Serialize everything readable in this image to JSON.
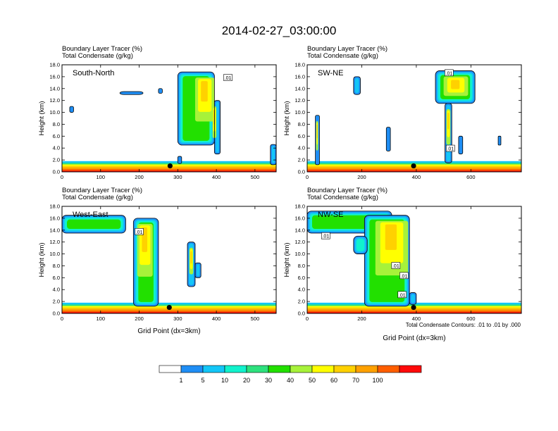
{
  "title": "2014-02-27_03:00:00",
  "colors": {
    "levels": [
      "#ffffff",
      "#1f8ef5",
      "#13c6f7",
      "#11f2cc",
      "#2ee17e",
      "#22e000",
      "#a7f23a",
      "#ffff00",
      "#ffd100",
      "#ffa100",
      "#ff5e00",
      "#ff0a0a"
    ],
    "contour": "#000000",
    "frame": "#000000"
  },
  "colorbar": {
    "labels": [
      "1",
      "5",
      "10",
      "20",
      "30",
      "40",
      "50",
      "60",
      "70",
      "100"
    ]
  },
  "footnote": "Total Condensate Contours: .01 to .01 by .000",
  "chart_data": [
    {
      "type": "heatmap",
      "panel_label": "South-North",
      "left_title_1": "Boundary Layer Tracer   (%)",
      "left_title_2": "Total Condensate   (g/kg)",
      "ylabel": "Height (km)",
      "xlabel": "",
      "xlim": [
        0,
        555
      ],
      "ylim": [
        0,
        18
      ],
      "xticks": [
        "0",
        "100",
        "200",
        "300",
        "400",
        "500"
      ],
      "xtick_values": [
        0,
        100,
        200,
        300,
        400,
        500
      ],
      "yticks": [
        "0.0",
        "2.0",
        "4.0",
        "6.0",
        "8.0",
        "10.0",
        "12.0",
        "14.0",
        "16.0",
        "18.0"
      ],
      "contour_labels": [
        {
          "text": ".01",
          "x": 430,
          "y": 15.8
        }
      ],
      "marker": {
        "x": 280,
        "y": 1.0
      },
      "features": [
        {
          "x": [
            300,
            395
          ],
          "top": 16.8,
          "bottom": 4.5,
          "dense": [
            345,
            395
          ]
        },
        {
          "x": [
            395,
            410
          ],
          "top": 12.0,
          "bottom": 3.0,
          "dense": [
            390,
            400
          ]
        },
        {
          "x": [
            150,
            210
          ],
          "top": 13.5,
          "bottom": 13.0,
          "dense": [
            0,
            0
          ]
        },
        {
          "x": [
            20,
            30
          ],
          "top": 11.0,
          "bottom": 10.0,
          "dense": [
            0,
            0
          ]
        },
        {
          "x": [
            250,
            260
          ],
          "top": 14.0,
          "bottom": 13.2,
          "dense": [
            0,
            0
          ]
        },
        {
          "x": [
            300,
            310
          ],
          "top": 2.6,
          "bottom": 1.4,
          "dense": [
            0,
            0
          ]
        },
        {
          "x": [
            540,
            555
          ],
          "top": 4.6,
          "bottom": 1.2,
          "dense": [
            0,
            0
          ]
        }
      ]
    },
    {
      "type": "heatmap",
      "panel_label": "SW-NE",
      "left_title_1": "Boundary Layer Tracer   (%)",
      "left_title_2": "Total Condensate   (g/kg)",
      "ylabel": "Height (km)",
      "xlabel": "",
      "xlim": [
        0,
        785
      ],
      "ylim": [
        0,
        18
      ],
      "xticks": [
        "0",
        "200",
        "400",
        "600"
      ],
      "xtick_values": [
        0,
        200,
        400,
        600
      ],
      "yticks": [
        "0.0",
        "2.0",
        "4.0",
        "6.0",
        "8.0",
        "10.0",
        "12.0",
        "14.0",
        "16.0",
        "18.0"
      ],
      "contour_labels": [
        {
          "text": ".01",
          "x": 520,
          "y": 16.6
        },
        {
          "text": ".01",
          "x": 525,
          "y": 3.9
        }
      ],
      "marker": {
        "x": 390,
        "y": 1.0
      },
      "features": [
        {
          "x": [
            470,
            615
          ],
          "top": 17.0,
          "bottom": 11.5,
          "dense": [
            500,
            590
          ]
        },
        {
          "x": [
            505,
            530
          ],
          "top": 11.5,
          "bottom": 1.5,
          "dense": [
            510,
            525
          ]
        },
        {
          "x": [
            30,
            45
          ],
          "top": 9.5,
          "bottom": 1.2,
          "dense": [
            33,
            40
          ]
        },
        {
          "x": [
            170,
            195
          ],
          "top": 16.0,
          "bottom": 13.0,
          "dense": [
            0,
            0
          ]
        },
        {
          "x": [
            290,
            305
          ],
          "top": 7.5,
          "bottom": 3.5,
          "dense": [
            0,
            0
          ]
        },
        {
          "x": [
            555,
            570
          ],
          "top": 6.0,
          "bottom": 3.0,
          "dense": [
            0,
            0
          ]
        },
        {
          "x": [
            700,
            710
          ],
          "top": 6.0,
          "bottom": 4.5,
          "dense": [
            0,
            0
          ]
        }
      ]
    },
    {
      "type": "heatmap",
      "panel_label": "West-East",
      "left_title_1": "Boundary Layer Tracer   (%)",
      "left_title_2": "Total Condensate   (g/kg)",
      "ylabel": "Height (km)",
      "xlabel": "Grid Point (dx=3km)",
      "xlim": [
        0,
        555
      ],
      "ylim": [
        0,
        18
      ],
      "xticks": [
        "0",
        "100",
        "200",
        "300",
        "400",
        "500"
      ],
      "xtick_values": [
        0,
        100,
        200,
        300,
        400,
        500
      ],
      "yticks": [
        "0.0",
        "2.0",
        "4.0",
        "6.0",
        "8.0",
        "10.0",
        "12.0",
        "14.0",
        "16.0",
        "18.0"
      ],
      "contour_labels": [
        {
          "text": ".01",
          "x": 200,
          "y": 13.7
        }
      ],
      "marker": {
        "x": 278,
        "y": 1.0
      },
      "features": [
        {
          "x": [
            0,
            165
          ],
          "top": 16.5,
          "bottom": 13.5,
          "dense": [
            0,
            0
          ]
        },
        {
          "x": [
            185,
            250
          ],
          "top": 16.0,
          "bottom": 1.2,
          "dense": [
            195,
            235
          ]
        },
        {
          "x": [
            325,
            345
          ],
          "top": 12.0,
          "bottom": 4.5,
          "dense": [
            330,
            340
          ]
        },
        {
          "x": [
            345,
            360
          ],
          "top": 8.5,
          "bottom": 6.0,
          "dense": [
            0,
            0
          ]
        }
      ]
    },
    {
      "type": "heatmap",
      "panel_label": "NW-SE",
      "left_title_1": "Boundary Layer Tracer   (%)",
      "left_title_2": "Total Condensate   (g/kg)",
      "ylabel": "Height (km)",
      "xlabel": "Grid Point (dx=3km)",
      "xlim": [
        0,
        785
      ],
      "ylim": [
        0,
        18
      ],
      "xticks": [
        "0",
        "200",
        "400",
        "600"
      ],
      "xtick_values": [
        0,
        200,
        400,
        600
      ],
      "yticks": [
        "0.0",
        "2.0",
        "4.0",
        "6.0",
        "8.0",
        "10.0",
        "12.0",
        "14.0",
        "16.0",
        "18.0"
      ],
      "contour_labels": [
        {
          "text": ".01",
          "x": 68,
          "y": 13.0
        },
        {
          "text": ".01",
          "x": 325,
          "y": 8.0
        },
        {
          "text": ".01",
          "x": 355,
          "y": 6.3
        },
        {
          "text": ".01",
          "x": 348,
          "y": 3.1
        }
      ],
      "marker": {
        "x": 390,
        "y": 1.0
      },
      "features": [
        {
          "x": [
            0,
            310
          ],
          "top": 17.2,
          "bottom": 13.5,
          "dense": [
            0,
            0
          ]
        },
        {
          "x": [
            210,
            375
          ],
          "top": 16.5,
          "bottom": 1.2,
          "dense": [
            250,
            370
          ]
        },
        {
          "x": [
            170,
            220
          ],
          "top": 13.0,
          "bottom": 10.0,
          "dense": [
            0,
            0
          ]
        },
        {
          "x": [
            375,
            400
          ],
          "top": 3.5,
          "bottom": 1.5,
          "dense": [
            0,
            0
          ]
        }
      ]
    }
  ]
}
